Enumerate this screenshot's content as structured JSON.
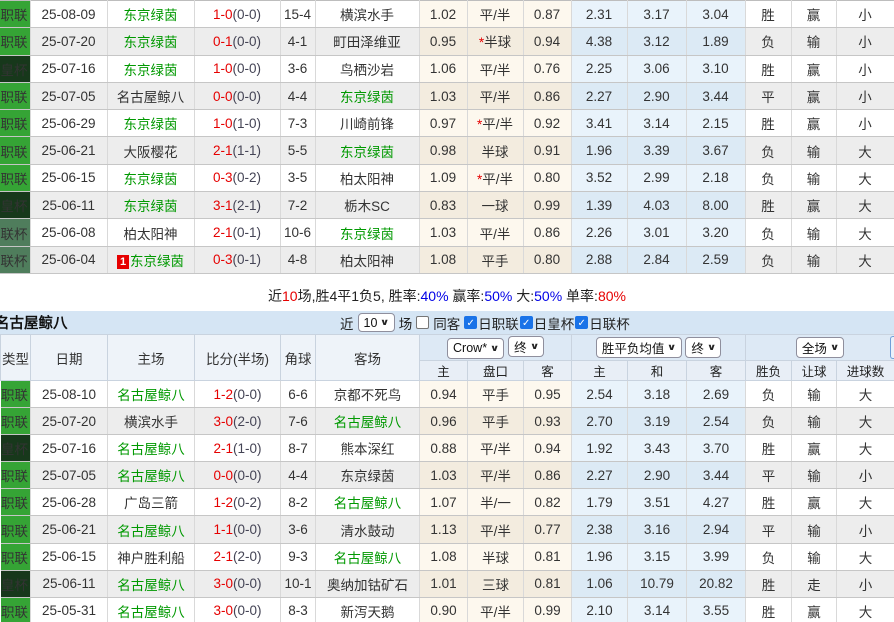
{
  "colors": {
    "band_bg": "#d5e5f4",
    "highlight_green": "#009900",
    "score_red": "#e60000",
    "result_red": "#cc0000",
    "result_green": "#008000",
    "result_blue": "#1414cc",
    "type_jl": "#35a435",
    "type_hb": "#17381b",
    "type_lb": "#4f7d5c",
    "checkbox_blue": "#1a73e8",
    "summary_blue": "#0000e6",
    "summary_red": "#e60000",
    "row_even": "#ededed",
    "asian_bg": "#fdf8ee",
    "asian_bg_even": "#f3ecdf",
    "euro_bg": "#e9f3fb",
    "euro_bg_even": "#dceaf5"
  },
  "table1": {
    "rows": [
      {
        "league": "日职联",
        "lc": "jl",
        "date": "25-08-09",
        "home": "东京绿茵",
        "hg": true,
        "badge": "",
        "score": "1-0",
        "half": "(0-0)",
        "corner": "15-4",
        "away": "横滨水手",
        "ag": false,
        "ah": "1.02",
        "hc": "平/半",
        "star": false,
        "aa": "0.87",
        "eh": "2.31",
        "ed": "3.17",
        "ea": "3.04",
        "res": "胜",
        "resc": "red",
        "let": "赢",
        "letc": "red",
        "goal": "小",
        "goalc": "green"
      },
      {
        "league": "日职联",
        "lc": "jl",
        "date": "25-07-20",
        "home": "东京绿茵",
        "hg": true,
        "badge": "",
        "score": "0-1",
        "half": "(0-0)",
        "corner": "4-1",
        "away": "町田泽维亚",
        "ag": false,
        "ah": "0.95",
        "hc": "半球",
        "star": true,
        "aa": "0.94",
        "eh": "4.38",
        "ed": "3.12",
        "ea": "1.89",
        "res": "负",
        "resc": "green",
        "let": "输",
        "letc": "green",
        "goal": "小",
        "goalc": "green"
      },
      {
        "league": "日皇杯",
        "lc": "hb",
        "date": "25-07-16",
        "home": "东京绿茵",
        "hg": true,
        "badge": "",
        "score": "1-0",
        "half": "(0-0)",
        "corner": "3-6",
        "away": "鸟栖沙岩",
        "ag": false,
        "ah": "1.06",
        "hc": "平/半",
        "star": false,
        "aa": "0.76",
        "eh": "2.25",
        "ed": "3.06",
        "ea": "3.10",
        "res": "胜",
        "resc": "red",
        "let": "赢",
        "letc": "red",
        "goal": "小",
        "goalc": "green"
      },
      {
        "league": "日职联",
        "lc": "jl",
        "date": "25-07-05",
        "home": "名古屋鲸八",
        "hg": false,
        "badge": "",
        "score": "0-0",
        "half": "(0-0)",
        "corner": "4-4",
        "away": "东京绿茵",
        "ag": true,
        "ah": "1.03",
        "hc": "平/半",
        "star": false,
        "aa": "0.86",
        "eh": "2.27",
        "ed": "2.90",
        "ea": "3.44",
        "res": "平",
        "resc": "blue",
        "let": "赢",
        "letc": "red",
        "goal": "小",
        "goalc": "green"
      },
      {
        "league": "日职联",
        "lc": "jl",
        "date": "25-06-29",
        "home": "东京绿茵",
        "hg": true,
        "badge": "",
        "score": "1-0",
        "half": "(1-0)",
        "corner": "7-3",
        "away": "川崎前锋",
        "ag": false,
        "ah": "0.97",
        "hc": "平/半",
        "star": true,
        "aa": "0.92",
        "eh": "3.41",
        "ed": "3.14",
        "ea": "2.15",
        "res": "胜",
        "resc": "red",
        "let": "赢",
        "letc": "red",
        "goal": "小",
        "goalc": "green"
      },
      {
        "league": "日职联",
        "lc": "jl",
        "date": "25-06-21",
        "home": "大阪樱花",
        "hg": false,
        "badge": "",
        "score": "2-1",
        "half": "(1-1)",
        "corner": "5-5",
        "away": "东京绿茵",
        "ag": true,
        "ah": "0.98",
        "hc": "半球",
        "star": false,
        "aa": "0.91",
        "eh": "1.96",
        "ed": "3.39",
        "ea": "3.67",
        "res": "负",
        "resc": "green",
        "let": "输",
        "letc": "green",
        "goal": "大",
        "goalc": "red"
      },
      {
        "league": "日职联",
        "lc": "jl",
        "date": "25-06-15",
        "home": "东京绿茵",
        "hg": true,
        "badge": "",
        "score": "0-3",
        "half": "(0-2)",
        "corner": "3-5",
        "away": "柏太阳神",
        "ag": false,
        "ah": "1.09",
        "hc": "平/半",
        "star": true,
        "aa": "0.80",
        "eh": "3.52",
        "ed": "2.99",
        "ea": "2.18",
        "res": "负",
        "resc": "green",
        "let": "输",
        "letc": "green",
        "goal": "大",
        "goalc": "red"
      },
      {
        "league": "日皇杯",
        "lc": "hb",
        "date": "25-06-11",
        "home": "东京绿茵",
        "hg": true,
        "badge": "",
        "score": "3-1",
        "half": "(2-1)",
        "corner": "7-2",
        "away": "栃木SC",
        "ag": false,
        "ah": "0.83",
        "hc": "一球",
        "star": false,
        "aa": "0.99",
        "eh": "1.39",
        "ed": "4.03",
        "ea": "8.00",
        "res": "胜",
        "resc": "red",
        "let": "赢",
        "letc": "red",
        "goal": "大",
        "goalc": "red"
      },
      {
        "league": "日联杯",
        "lc": "lb",
        "date": "25-06-08",
        "home": "柏太阳神",
        "hg": false,
        "badge": "",
        "score": "2-1",
        "half": "(0-1)",
        "corner": "10-6",
        "away": "东京绿茵",
        "ag": true,
        "ah": "1.03",
        "hc": "平/半",
        "star": false,
        "aa": "0.86",
        "eh": "2.26",
        "ed": "3.01",
        "ea": "3.20",
        "res": "负",
        "resc": "green",
        "let": "输",
        "letc": "green",
        "goal": "大",
        "goalc": "red"
      },
      {
        "league": "日联杯",
        "lc": "lb",
        "date": "25-06-04",
        "home": "东京绿茵",
        "hg": true,
        "badge": "1",
        "score": "0-3",
        "half": "(0-1)",
        "corner": "4-8",
        "away": "柏太阳神",
        "ag": false,
        "ah": "1.08",
        "hc": "平手",
        "star": false,
        "aa": "0.80",
        "eh": "2.88",
        "ed": "2.84",
        "ea": "2.59",
        "res": "负",
        "resc": "green",
        "let": "输",
        "letc": "green",
        "goal": "大",
        "goalc": "red"
      }
    ]
  },
  "summary": {
    "segments": [
      {
        "text": "近",
        "color": "black"
      },
      {
        "text": "10",
        "color": "red"
      },
      {
        "text": "场,胜4平1负5, 胜率:",
        "color": "black"
      },
      {
        "text": "40%",
        "color": "blue"
      },
      {
        "text": " 赢率:",
        "color": "black"
      },
      {
        "text": "50%",
        "color": "blue"
      },
      {
        "text": " 大:",
        "color": "black"
      },
      {
        "text": "50%",
        "color": "blue"
      },
      {
        "text": " 单率:",
        "color": "black"
      },
      {
        "text": "80%",
        "color": "red"
      }
    ]
  },
  "section2": {
    "team_name": "名古屋鲸八",
    "filter": {
      "recent_label": "近",
      "count_value": "10",
      "games_label": "场",
      "same_opponent_label": "同客",
      "same_opponent_checked": false,
      "leagues": [
        {
          "label": "日职联",
          "checked": true
        },
        {
          "label": "日皇杯",
          "checked": true
        },
        {
          "label": "日联杯",
          "checked": true
        }
      ]
    }
  },
  "table2_header": {
    "type": "类型",
    "date": "日期",
    "home": "主场",
    "score": "比分(半场)",
    "corner": "角球",
    "away": "客场",
    "dd_bookmaker": "Crow*",
    "dd_final_asian": "终",
    "dd_avg": "胜平负均值",
    "dd_final_euro": "终",
    "dd_scope": "全场",
    "sub": [
      "主",
      "盘口",
      "客",
      "主",
      "和",
      "客",
      "胜负",
      "让球",
      "进球数"
    ]
  },
  "table2": {
    "rows": [
      {
        "league": "日职联",
        "lc": "jl",
        "date": "25-08-10",
        "home": "名古屋鲸八",
        "hg": true,
        "badge": "",
        "score": "1-2",
        "half": "(0-0)",
        "corner": "6-6",
        "away": "京都不死鸟",
        "ag": false,
        "ah": "0.94",
        "hc": "平手",
        "star": false,
        "aa": "0.95",
        "eh": "2.54",
        "ed": "3.18",
        "ea": "2.69",
        "res": "负",
        "resc": "green",
        "let": "输",
        "letc": "green",
        "goal": "大",
        "goalc": "red"
      },
      {
        "league": "日职联",
        "lc": "jl",
        "date": "25-07-20",
        "home": "横滨水手",
        "hg": false,
        "badge": "",
        "score": "3-0",
        "half": "(2-0)",
        "corner": "7-6",
        "away": "名古屋鲸八",
        "ag": true,
        "ah": "0.96",
        "hc": "平手",
        "star": false,
        "aa": "0.93",
        "eh": "2.70",
        "ed": "3.19",
        "ea": "2.54",
        "res": "负",
        "resc": "green",
        "let": "输",
        "letc": "green",
        "goal": "大",
        "goalc": "red"
      },
      {
        "league": "日皇杯",
        "lc": "hb",
        "date": "25-07-16",
        "home": "名古屋鲸八",
        "hg": true,
        "badge": "",
        "score": "2-1",
        "half": "(1-0)",
        "corner": "8-7",
        "away": "熊本深红",
        "ag": false,
        "ah": "0.88",
        "hc": "平/半",
        "star": false,
        "aa": "0.94",
        "eh": "1.92",
        "ed": "3.43",
        "ea": "3.70",
        "res": "胜",
        "resc": "red",
        "let": "赢",
        "letc": "red",
        "goal": "大",
        "goalc": "red"
      },
      {
        "league": "日职联",
        "lc": "jl",
        "date": "25-07-05",
        "home": "名古屋鲸八",
        "hg": true,
        "badge": "",
        "score": "0-0",
        "half": "(0-0)",
        "corner": "4-4",
        "away": "东京绿茵",
        "ag": false,
        "ah": "1.03",
        "hc": "平/半",
        "star": false,
        "aa": "0.86",
        "eh": "2.27",
        "ed": "2.90",
        "ea": "3.44",
        "res": "平",
        "resc": "blue",
        "let": "输",
        "letc": "green",
        "goal": "小",
        "goalc": "green"
      },
      {
        "league": "日职联",
        "lc": "jl",
        "date": "25-06-28",
        "home": "广岛三箭",
        "hg": false,
        "badge": "",
        "score": "1-2",
        "half": "(0-2)",
        "corner": "8-2",
        "away": "名古屋鲸八",
        "ag": true,
        "ah": "1.07",
        "hc": "半/一",
        "star": false,
        "aa": "0.82",
        "eh": "1.79",
        "ed": "3.51",
        "ea": "4.27",
        "res": "胜",
        "resc": "red",
        "let": "赢",
        "letc": "red",
        "goal": "大",
        "goalc": "red"
      },
      {
        "league": "日职联",
        "lc": "jl",
        "date": "25-06-21",
        "home": "名古屋鲸八",
        "hg": true,
        "badge": "",
        "score": "1-1",
        "half": "(0-0)",
        "corner": "3-6",
        "away": "清水鼓动",
        "ag": false,
        "ah": "1.13",
        "hc": "平/半",
        "star": false,
        "aa": "0.77",
        "eh": "2.38",
        "ed": "3.16",
        "ea": "2.94",
        "res": "平",
        "resc": "blue",
        "let": "输",
        "letc": "green",
        "goal": "小",
        "goalc": "green"
      },
      {
        "league": "日职联",
        "lc": "jl",
        "date": "25-06-15",
        "home": "神户胜利船",
        "hg": false,
        "badge": "",
        "score": "2-1",
        "half": "(2-0)",
        "corner": "9-3",
        "away": "名古屋鲸八",
        "ag": true,
        "ah": "1.08",
        "hc": "半球",
        "star": false,
        "aa": "0.81",
        "eh": "1.96",
        "ed": "3.15",
        "ea": "3.99",
        "res": "负",
        "resc": "green",
        "let": "输",
        "letc": "green",
        "goal": "大",
        "goalc": "red"
      },
      {
        "league": "日皇杯",
        "lc": "hb",
        "date": "25-06-11",
        "home": "名古屋鲸八",
        "hg": true,
        "badge": "",
        "score": "3-0",
        "half": "(0-0)",
        "corner": "10-1",
        "away": "奥纳加钴矿石",
        "ag": false,
        "ah": "1.01",
        "hc": "三球",
        "star": false,
        "aa": "0.81",
        "eh": "1.06",
        "ed": "10.79",
        "ea": "20.82",
        "res": "胜",
        "resc": "red",
        "let": "走",
        "letc": "blue",
        "goal": "小",
        "goalc": "green"
      },
      {
        "league": "日职联",
        "lc": "jl",
        "date": "25-05-31",
        "home": "名古屋鲸八",
        "hg": true,
        "badge": "",
        "score": "3-0",
        "half": "(0-0)",
        "corner": "8-3",
        "away": "新泻天鹅",
        "ag": false,
        "ah": "0.90",
        "hc": "平/半",
        "star": false,
        "aa": "0.99",
        "eh": "2.10",
        "ed": "3.14",
        "ea": "3.55",
        "res": "胜",
        "resc": "red",
        "let": "赢",
        "letc": "red",
        "goal": "大",
        "goalc": "red"
      }
    ]
  }
}
